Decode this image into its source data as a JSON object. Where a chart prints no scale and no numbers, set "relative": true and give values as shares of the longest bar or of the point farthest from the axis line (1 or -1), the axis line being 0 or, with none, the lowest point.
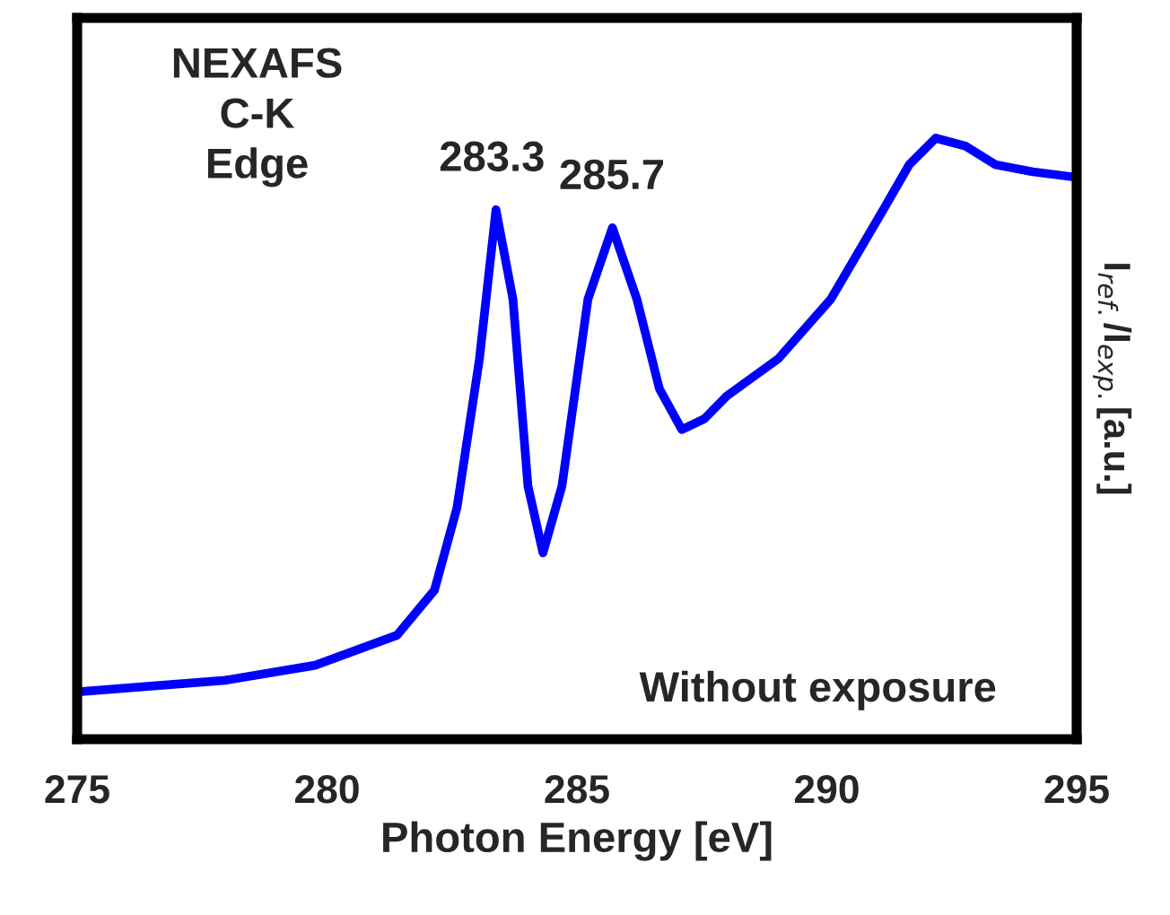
{
  "chart_data": {
    "type": "line",
    "relative": true,
    "xlabel": "Photon Energy [eV]",
    "ylabel": "I$_{ref.}$/I$_{exp.}$[a.u.]",
    "xlim": [
      275,
      295
    ],
    "xticks": [
      275,
      280,
      285,
      290,
      295
    ],
    "grid": false,
    "legend": false,
    "marker": "none",
    "line_style": "solid",
    "x": [
      275.04,
      277.96,
      279.76,
      281.4,
      282.15,
      282.6,
      283.05,
      283.38,
      283.72,
      284.02,
      284.32,
      284.7,
      285.22,
      285.71,
      286.2,
      286.65,
      287.1,
      287.55,
      288.0,
      289.03,
      290.08,
      291.13,
      291.65,
      292.18,
      292.77,
      293.37,
      294.12,
      294.97
    ],
    "series": [
      {
        "color": "#0000ff",
        "values": [
          0.079,
          0.098,
          0.123,
          0.173,
          0.248,
          0.385,
          0.633,
          0.881,
          0.732,
          0.421,
          0.31,
          0.421,
          0.732,
          0.851,
          0.732,
          0.583,
          0.515,
          0.533,
          0.571,
          0.633,
          0.732,
          0.881,
          0.956,
          1.0,
          0.987,
          0.956,
          0.944,
          0.935
        ]
      }
    ],
    "annotations": [
      {
        "text": "283.3",
        "x": 283.3,
        "y": 0.881
      },
      {
        "text": "285.7",
        "x": 285.7,
        "y": 0.851
      },
      "NEXAFS\nC-K\nEdge",
      "Without exposure"
    ]
  }
}
